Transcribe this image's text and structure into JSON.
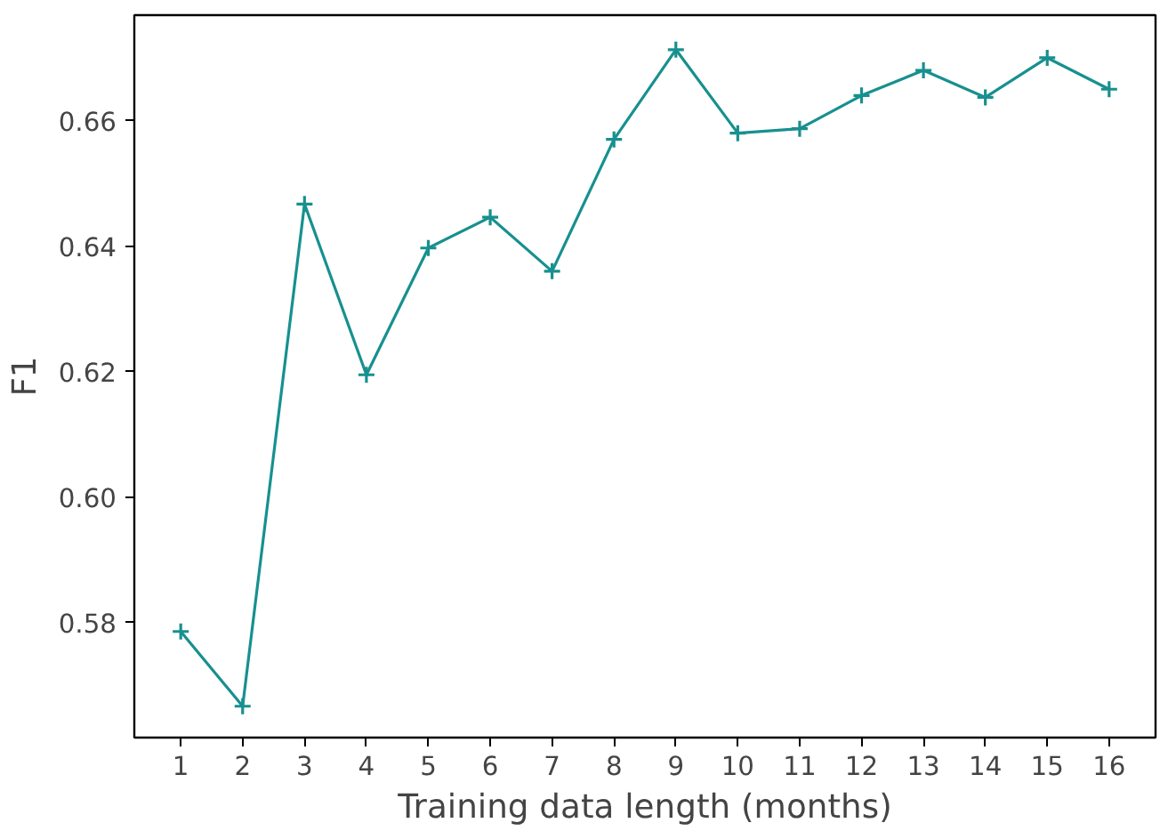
{
  "chart_data": {
    "type": "line",
    "xlabel": "Training data length (months)",
    "ylabel": "F1",
    "x": [
      1,
      2,
      3,
      4,
      5,
      6,
      7,
      8,
      9,
      10,
      11,
      12,
      13,
      14,
      15,
      16
    ],
    "series": [
      {
        "color": "#17908f",
        "values": [
          0.5786,
          0.5667,
          0.6467,
          0.6195,
          0.6397,
          0.6446,
          0.636,
          0.657,
          0.6713,
          0.658,
          0.6587,
          0.664,
          0.668,
          0.6637,
          0.67,
          0.665
        ]
      }
    ],
    "xlim": [
      0.25,
      16.75
    ],
    "ylim": [
      0.5617,
      0.6768
    ],
    "xticks": [
      1,
      2,
      3,
      4,
      5,
      6,
      7,
      8,
      9,
      10,
      11,
      12,
      13,
      14,
      15,
      16
    ],
    "yticks": [
      {
        "value": 0.58,
        "label": "0.58"
      },
      {
        "value": 0.6,
        "label": "0.60"
      },
      {
        "value": 0.62,
        "label": "0.62"
      },
      {
        "value": 0.64,
        "label": "0.64"
      },
      {
        "value": 0.66,
        "label": "0.66"
      }
    ],
    "marker": "cross",
    "line_style": "solid",
    "grid": false
  }
}
